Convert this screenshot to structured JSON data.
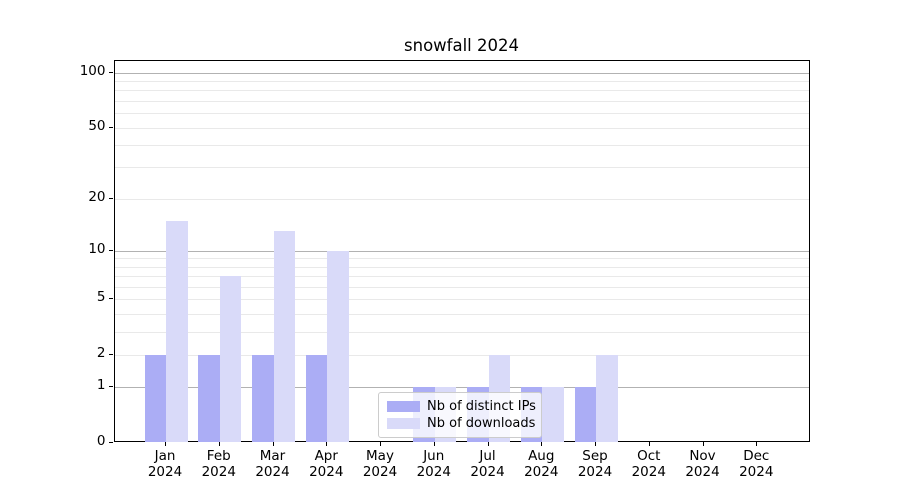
{
  "title": "snowfall 2024",
  "legend": {
    "items": [
      {
        "label": "Nb of distinct IPs",
        "color": "#abadf5"
      },
      {
        "label": "Nb of downloads",
        "color": "#d9daf9"
      }
    ]
  },
  "chart_data": {
    "type": "bar",
    "title": "snowfall 2024",
    "categories": [
      "Jan 2024",
      "Feb 2024",
      "Mar 2024",
      "Apr 2024",
      "May 2024",
      "Jun 2024",
      "Jul 2024",
      "Aug 2024",
      "Sep 2024",
      "Oct 2024",
      "Nov 2024",
      "Dec 2024"
    ],
    "series": [
      {
        "name": "Nb of distinct IPs",
        "color": "#abadf5",
        "values": [
          2,
          2,
          2,
          2,
          0,
          1,
          1,
          1,
          1,
          0,
          0,
          0
        ]
      },
      {
        "name": "Nb of downloads",
        "color": "#d9daf9",
        "values": [
          15,
          7,
          13,
          10,
          0,
          1,
          2,
          1,
          2,
          0,
          0,
          0
        ]
      }
    ],
    "xlabel": "",
    "ylabel": "",
    "yscale": "log1p",
    "ylim": [
      0,
      116
    ],
    "yticks": [
      0,
      1,
      2,
      5,
      10,
      20,
      50,
      100
    ],
    "yticks_minor": [
      3,
      4,
      6,
      7,
      8,
      9,
      30,
      40,
      60,
      70,
      80,
      90
    ],
    "grid": true,
    "grid_major_color": "#b2b2b2",
    "grid_minor_color": "#e9e9e9",
    "legend_position": "lower center"
  }
}
